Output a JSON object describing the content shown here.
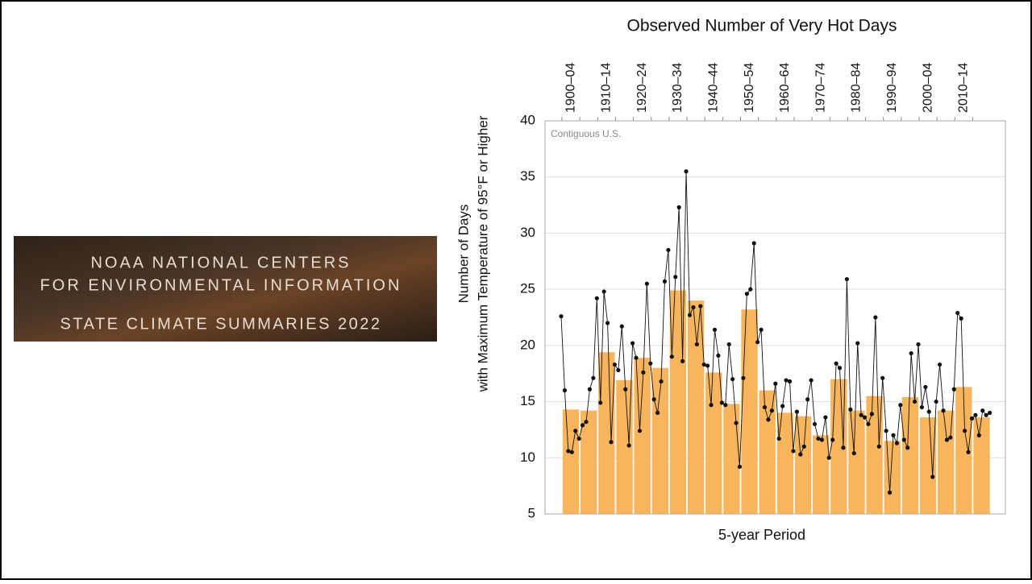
{
  "banner": {
    "lines": [
      "NOAA NATIONAL CENTERS",
      "FOR ENVIRONMENTAL INFORMATION",
      "STATE CLIMATE SUMMARIES 2022"
    ]
  },
  "chart_data": {
    "type": "bar",
    "title": "Observed Number of Very Hot Days",
    "xlabel": "5-year Period",
    "ylabel": [
      "Number of Days",
      "with Maximum Temperature of 95°F or Higher"
    ],
    "annotation": "Contiguous U.S.",
    "categories": [
      "1900–04",
      null,
      "1910–14",
      null,
      "1920–24",
      null,
      "1930–34",
      null,
      "1940–44",
      null,
      "1950–54",
      null,
      "1960–64",
      null,
      "1970–74",
      null,
      "1980–84",
      null,
      "1990–94",
      null,
      "2000–04",
      null,
      "2010–14",
      null
    ],
    "values": [
      14.3,
      14.2,
      19.4,
      16.9,
      18.9,
      18.0,
      24.9,
      24.0,
      17.6,
      14.8,
      23.2,
      16.0,
      14.0,
      13.7,
      12.0,
      17.0,
      14.2,
      15.5,
      11.5,
      15.4,
      13.6,
      14.2,
      16.3,
      13.6
    ],
    "color": "#f9b55c",
    "overlay": {
      "type": "line",
      "color": "#111111",
      "x": [
        1900,
        1901,
        1902,
        1903,
        1904,
        1905,
        1906,
        1907,
        1908,
        1909,
        1910,
        1911,
        1912,
        1913,
        1914,
        1915,
        1916,
        1917,
        1918,
        1919,
        1920,
        1921,
        1922,
        1923,
        1924,
        1925,
        1926,
        1927,
        1928,
        1929,
        1930,
        1931,
        1932,
        1933,
        1934,
        1935,
        1936,
        1937,
        1938,
        1939,
        1940,
        1941,
        1942,
        1943,
        1944,
        1945,
        1946,
        1947,
        1948,
        1949,
        1950,
        1951,
        1952,
        1953,
        1954,
        1955,
        1956,
        1957,
        1958,
        1959,
        1960,
        1961,
        1962,
        1963,
        1964,
        1965,
        1966,
        1967,
        1968,
        1969,
        1970,
        1971,
        1972,
        1973,
        1974,
        1975,
        1976,
        1977,
        1978,
        1979,
        1980,
        1981,
        1982,
        1983,
        1984,
        1985,
        1986,
        1987,
        1988,
        1989,
        1990,
        1991,
        1992,
        1993,
        1994,
        1995,
        1996,
        1997,
        1998,
        1999,
        2000,
        2001,
        2002,
        2003,
        2004,
        2005,
        2006,
        2007,
        2008,
        2009,
        2010,
        2011,
        2012,
        2013,
        2014,
        2015,
        2016,
        2017,
        2018,
        2019,
        2020
      ],
      "values": [
        22.6,
        16,
        10.6,
        10.5,
        12.4,
        11.7,
        12.9,
        13.2,
        16.1,
        17.1,
        24.2,
        14.9,
        24.8,
        22,
        11.4,
        18.3,
        17.8,
        21.7,
        16.1,
        11.1,
        20.2,
        18.9,
        12.4,
        17.6,
        25.5,
        18.4,
        15.2,
        14,
        16.8,
        25.7,
        28.5,
        19,
        26.1,
        32.3,
        18.6,
        35.5,
        22.7,
        23.4,
        20.1,
        23.5,
        18.3,
        18.2,
        14.7,
        21.4,
        19.1,
        14.9,
        14.7,
        20.1,
        17,
        13.1,
        9.2,
        17.1,
        24.6,
        25,
        29.1,
        20.3,
        21.4,
        14.5,
        13.4,
        14.2,
        16.6,
        11.7,
        14.6,
        16.9,
        16.8,
        10.6,
        14.1,
        10.3,
        11,
        15.2,
        16.9,
        13,
        11.7,
        11.6,
        13.6,
        10,
        11.6,
        18.4,
        18,
        10.9,
        25.9,
        14.3,
        10.4,
        20.2,
        13.8,
        13.6,
        13,
        13.9,
        22.5,
        11,
        17.1,
        12.4,
        6.9,
        12,
        11.3,
        14.7,
        11.6,
        10.9,
        19.3,
        15,
        20.1,
        14.5,
        16.3,
        14.1,
        8.3,
        15,
        18.3,
        14.2,
        11.6,
        11.8,
        16.1,
        22.9,
        22.4,
        12.4,
        10.5,
        13.5,
        13.8,
        12,
        14.2,
        13.8,
        14
      ]
    },
    "ylim": [
      5,
      40
    ],
    "yticks": [
      5,
      10,
      15,
      20,
      25,
      30,
      35,
      40
    ],
    "grid": true
  }
}
